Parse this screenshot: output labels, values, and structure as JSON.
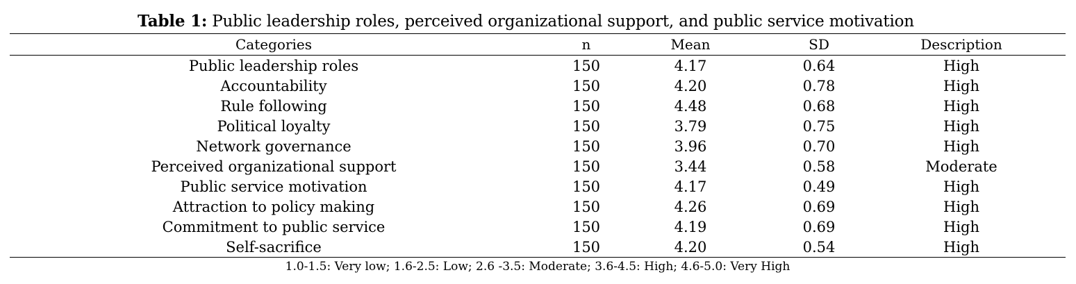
{
  "table": {
    "caption_label": "Table 1:",
    "caption_text": " Public leadership roles, perceived organizational support, and public service motivation",
    "columns": [
      "Categories",
      "n",
      "Mean",
      "SD",
      "Description"
    ],
    "rows": [
      {
        "category": "Public leadership roles",
        "n": "150",
        "mean": "4.17",
        "sd": "0.64",
        "description": "High"
      },
      {
        "category": "Accountability",
        "n": "150",
        "mean": "4.20",
        "sd": "0.78",
        "description": "High"
      },
      {
        "category": "Rule following",
        "n": "150",
        "mean": "4.48",
        "sd": "0.68",
        "description": "High"
      },
      {
        "category": "Political loyalty",
        "n": "150",
        "mean": "3.79",
        "sd": "0.75",
        "description": "High"
      },
      {
        "category": "Network governance",
        "n": "150",
        "mean": "3.96",
        "sd": "0.70",
        "description": "High"
      },
      {
        "category": "Perceived organizational support",
        "n": "150",
        "mean": "3.44",
        "sd": "0.58",
        "description": "Moderate"
      },
      {
        "category": "Public service motivation",
        "n": "150",
        "mean": "4.17",
        "sd": "0.49",
        "description": "High"
      },
      {
        "category": "Attraction to policy making",
        "n": "150",
        "mean": "4.26",
        "sd": "0.69",
        "description": "High"
      },
      {
        "category": "Commitment to public service",
        "n": "150",
        "mean": "4.19",
        "sd": "0.69",
        "description": "High"
      },
      {
        "category": "Self-sacrifice",
        "n": "150",
        "mean": "4.20",
        "sd": "0.54",
        "description": "High"
      }
    ],
    "note": "1.0-1.5: Very low; 1.6-2.5: Low; 2.6 -3.5: Moderate; 3.6-4.5: High; 4.6-5.0: Very High"
  }
}
